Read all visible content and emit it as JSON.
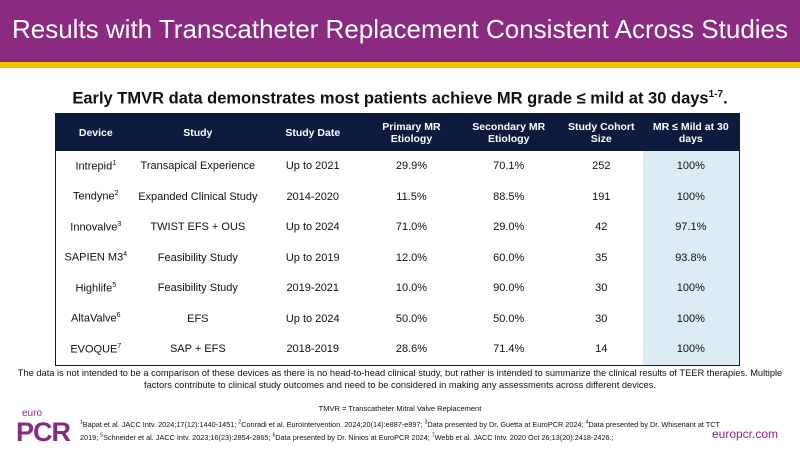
{
  "header": {
    "title": "Results with Transcatheter Replacement Consistent Across Studies"
  },
  "subtitle": {
    "text": "Early TMVR data demonstrates most patients achieve MR grade ≤ mild at 30 days",
    "sup": "1-7",
    "end": "."
  },
  "table": {
    "columns": [
      "Device",
      "Study",
      "Study Date",
      "Primary MR Etiology",
      "Secondary MR Etiology",
      "Study Cohort Size",
      "MR ≤ Mild at 30 days"
    ],
    "rows": [
      [
        {
          "name": "Intrepid",
          "sup": "1"
        },
        "Transapical Experience",
        "Up to 2021",
        "29.9%",
        "70.1%",
        "252",
        "100%"
      ],
      [
        {
          "name": "Tendyne",
          "sup": "2"
        },
        "Expanded Clinical Study",
        "2014-2020",
        "11.5%",
        "88.5%",
        "191",
        "100%"
      ],
      [
        {
          "name": "Innovalve",
          "sup": "3"
        },
        "TWIST EFS + OUS",
        "Up to 2024",
        "71.0%",
        "29.0%",
        "42",
        "97.1%"
      ],
      [
        {
          "name": "SAPIEN M3",
          "sup": "4"
        },
        "Feasibility Study",
        "Up to 2019",
        "12.0%",
        "60.0%",
        "35",
        "93.8%"
      ],
      [
        {
          "name": "Highlife",
          "sup": "5"
        },
        "Feasibility Study",
        "2019-2021",
        "10.0%",
        "90.0%",
        "30",
        "100%"
      ],
      [
        {
          "name": "AltaValve",
          "sup": "6"
        },
        "EFS",
        "Up to 2024",
        "50.0%",
        "50.0%",
        "30",
        "100%"
      ],
      [
        {
          "name": "EVOQUE",
          "sup": "7"
        },
        "SAP + EFS",
        "2018-2019",
        "28.6%",
        "71.4%",
        "14",
        "100%"
      ]
    ]
  },
  "note": "The data is not intended to be a comparison of these devices as there is no head-to-head clinical study, but rather is intended to summarize the clinical results of TEER therapies. Multiple factors contribute to clinical study outcomes and need to be considered in making any assessments across different devices.",
  "abbreviation": "TMVR = Transcatheter Mitral Valve Replacement",
  "references": [
    {
      "n": "1",
      "text": "Bapat et al. JACC Intv. 2024;17(12):1440-1451;"
    },
    {
      "n": "2",
      "text": "Conradi et al. EuroIntervention. 2024;20(14):e887-e897;"
    },
    {
      "n": "3",
      "text": "Data presented by Dr. Guetta at EuroPCR 2024;"
    },
    {
      "n": "4",
      "text": "Data presented by Dr. Whisenant at TCT 2019;"
    },
    {
      "n": "5",
      "text": "Schneider et al. JACC Intv. 2023;16(23):2854-2865;"
    },
    {
      "n": "6",
      "text": "Data presented by Dr. Ninios at EuroPCR 2024;"
    },
    {
      "n": "7",
      "text": "Webb et al. JACC Intv. 2020 Oct 26;13(20):2418-2426.;"
    }
  ],
  "logo": {
    "top": "euro",
    "main": "PCR"
  },
  "website": "europcr.com"
}
